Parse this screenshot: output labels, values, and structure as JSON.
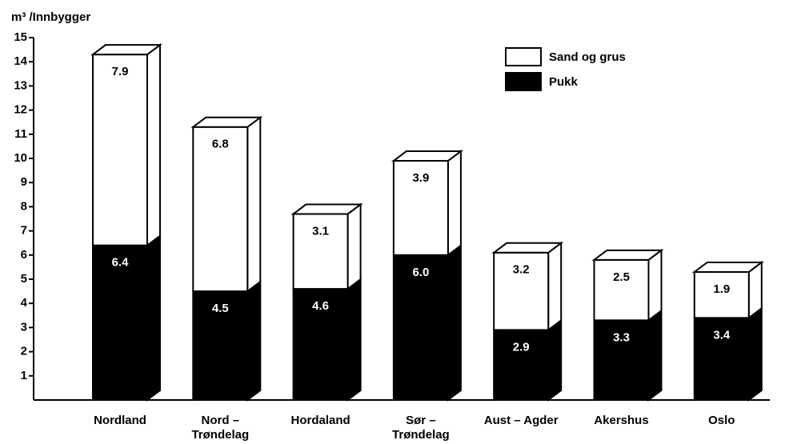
{
  "chart_data": {
    "type": "bar3d-stacked",
    "y_label": "m³ /Innbygger",
    "categories": [
      "Nordland",
      "Nord –\nTrøndelag",
      "Hordaland",
      "Sør –\nTrøndelag",
      "Aust – Agder",
      "Akershus",
      "Oslo"
    ],
    "series": [
      {
        "name": "Pukk",
        "color": "#000000",
        "values": [
          6.4,
          4.5,
          4.6,
          6.0,
          2.9,
          3.3,
          3.4
        ],
        "value_labels": [
          "6.4",
          "4.5",
          "4.6",
          "6.0",
          "2.9",
          "3.3",
          "3.4"
        ]
      },
      {
        "name": "Sand og grus",
        "color": "#ffffff",
        "values": [
          7.9,
          6.8,
          3.1,
          3.9,
          3.2,
          2.5,
          1.9
        ],
        "value_labels": [
          "7.9",
          "6.8",
          "3.1",
          "3.9",
          "3.2",
          "2.5",
          "1.9"
        ]
      }
    ],
    "ylim": [
      0,
      15
    ],
    "yticks": [
      1,
      2,
      3,
      4,
      5,
      6,
      7,
      8,
      9,
      10,
      11,
      12,
      13,
      14,
      15
    ],
    "legend": "upper right"
  }
}
